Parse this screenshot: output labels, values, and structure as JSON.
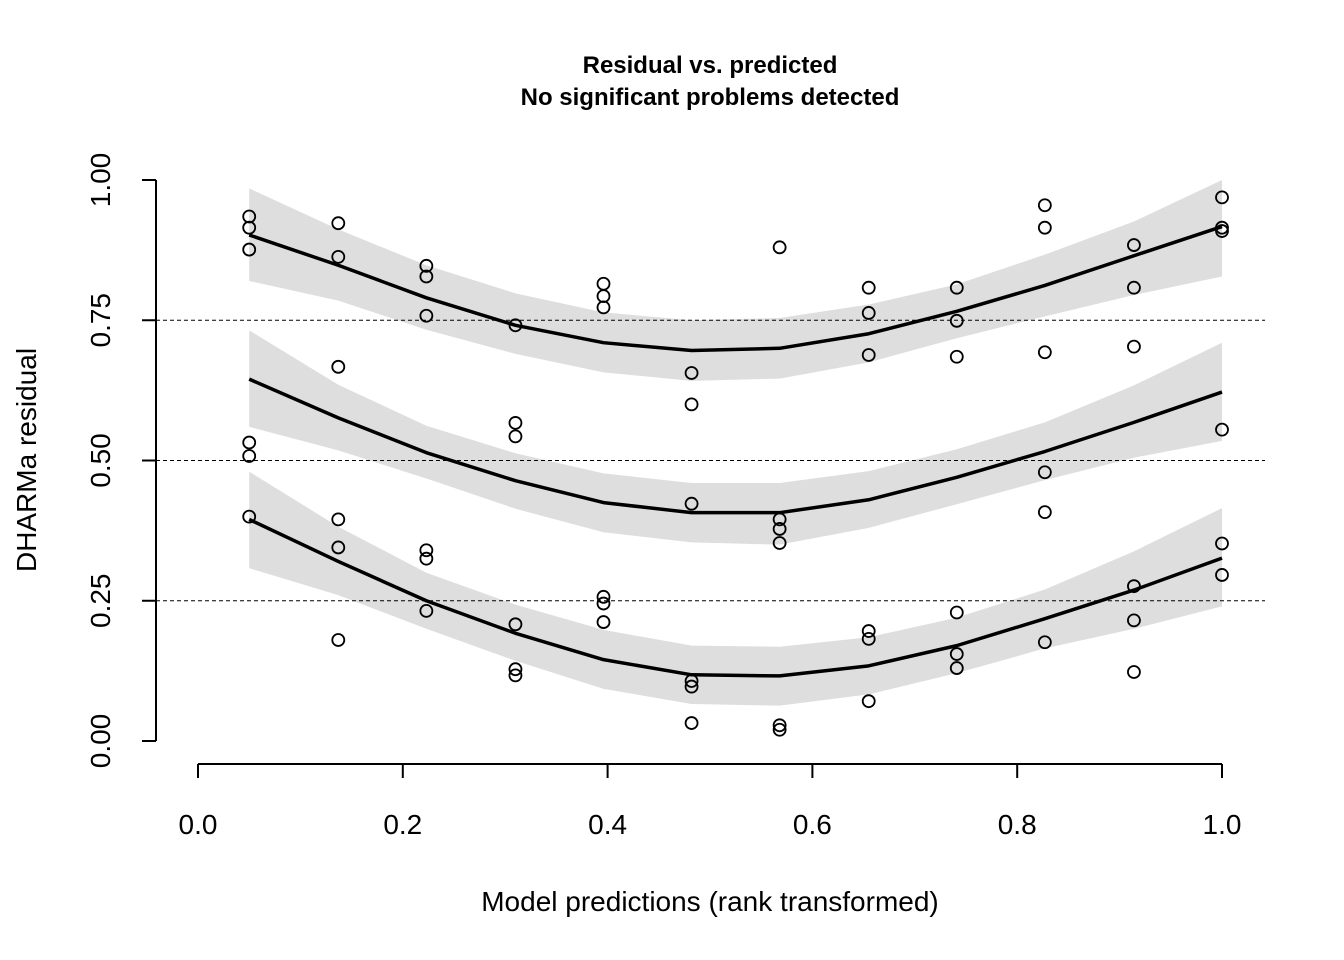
{
  "chart_data": {
    "type": "scatter",
    "title": "Residual vs. predicted",
    "subtitle": "No significant problems detected",
    "xlabel": "Model predictions (rank transformed)",
    "ylabel": "DHARMa residual",
    "xlim": [
      0.0,
      1.0
    ],
    "ylim": [
      0.0,
      1.0
    ],
    "x_ticks": [
      "0.0",
      "0.2",
      "0.4",
      "0.6",
      "0.8",
      "1.0"
    ],
    "y_ticks": [
      "0.00",
      "0.25",
      "0.50",
      "0.75",
      "1.00"
    ],
    "reference_lines": [
      0.25,
      0.5,
      0.75
    ],
    "grid": false,
    "points": [
      [
        0.05,
        0.935
      ],
      [
        0.05,
        0.915
      ],
      [
        0.05,
        0.876
      ],
      [
        0.05,
        0.532
      ],
      [
        0.05,
        0.508
      ],
      [
        0.05,
        0.4
      ],
      [
        0.137,
        0.923
      ],
      [
        0.137,
        0.863
      ],
      [
        0.137,
        0.667
      ],
      [
        0.137,
        0.395
      ],
      [
        0.137,
        0.345
      ],
      [
        0.137,
        0.18
      ],
      [
        0.223,
        0.847
      ],
      [
        0.223,
        0.828
      ],
      [
        0.223,
        0.758
      ],
      [
        0.223,
        0.34
      ],
      [
        0.223,
        0.325
      ],
      [
        0.223,
        0.232
      ],
      [
        0.31,
        0.741
      ],
      [
        0.31,
        0.567
      ],
      [
        0.31,
        0.543
      ],
      [
        0.31,
        0.208
      ],
      [
        0.31,
        0.128
      ],
      [
        0.31,
        0.117
      ],
      [
        0.396,
        0.815
      ],
      [
        0.396,
        0.793
      ],
      [
        0.396,
        0.773
      ],
      [
        0.396,
        0.257
      ],
      [
        0.396,
        0.245
      ],
      [
        0.396,
        0.212
      ],
      [
        0.482,
        0.656
      ],
      [
        0.482,
        0.6
      ],
      [
        0.482,
        0.423
      ],
      [
        0.482,
        0.107
      ],
      [
        0.482,
        0.097
      ],
      [
        0.482,
        0.032
      ],
      [
        0.568,
        0.88
      ],
      [
        0.568,
        0.395
      ],
      [
        0.568,
        0.378
      ],
      [
        0.568,
        0.353
      ],
      [
        0.568,
        0.028
      ],
      [
        0.568,
        0.02
      ],
      [
        0.655,
        0.808
      ],
      [
        0.655,
        0.763
      ],
      [
        0.655,
        0.688
      ],
      [
        0.655,
        0.196
      ],
      [
        0.655,
        0.182
      ],
      [
        0.655,
        0.071
      ],
      [
        0.741,
        0.808
      ],
      [
        0.741,
        0.749
      ],
      [
        0.741,
        0.685
      ],
      [
        0.741,
        0.229
      ],
      [
        0.741,
        0.155
      ],
      [
        0.741,
        0.13
      ],
      [
        0.827,
        0.955
      ],
      [
        0.827,
        0.915
      ],
      [
        0.827,
        0.693
      ],
      [
        0.827,
        0.479
      ],
      [
        0.827,
        0.408
      ],
      [
        0.827,
        0.176
      ],
      [
        0.914,
        0.884
      ],
      [
        0.914,
        0.808
      ],
      [
        0.914,
        0.703
      ],
      [
        0.914,
        0.276
      ],
      [
        0.914,
        0.215
      ],
      [
        0.914,
        0.123
      ],
      [
        1.0,
        0.969
      ],
      [
        1.0,
        0.915
      ],
      [
        1.0,
        0.909
      ],
      [
        1.0,
        0.555
      ],
      [
        1.0,
        0.352
      ],
      [
        1.0,
        0.296
      ]
    ],
    "quantile_curves": [
      {
        "quantile": 0.75,
        "x": [
          0.05,
          0.137,
          0.223,
          0.31,
          0.396,
          0.482,
          0.568,
          0.655,
          0.741,
          0.827,
          0.914,
          1.0
        ],
        "fit": [
          0.902,
          0.848,
          0.79,
          0.741,
          0.71,
          0.696,
          0.7,
          0.726,
          0.766,
          0.812,
          0.865,
          0.917
        ],
        "lower": [
          0.82,
          0.785,
          0.733,
          0.69,
          0.657,
          0.642,
          0.646,
          0.675,
          0.718,
          0.757,
          0.795,
          0.828
        ],
        "upper": [
          0.985,
          0.912,
          0.848,
          0.798,
          0.764,
          0.75,
          0.754,
          0.778,
          0.814,
          0.867,
          0.926,
          1.0
        ]
      },
      {
        "quantile": 0.5,
        "x": [
          0.05,
          0.137,
          0.223,
          0.31,
          0.396,
          0.482,
          0.568,
          0.655,
          0.741,
          0.827,
          0.914,
          1.0
        ],
        "fit": [
          0.645,
          0.576,
          0.514,
          0.464,
          0.425,
          0.407,
          0.407,
          0.43,
          0.47,
          0.516,
          0.568,
          0.622
        ],
        "lower": [
          0.56,
          0.518,
          0.468,
          0.414,
          0.372,
          0.354,
          0.35,
          0.38,
          0.422,
          0.465,
          0.505,
          0.535
        ],
        "upper": [
          0.732,
          0.635,
          0.562,
          0.513,
          0.477,
          0.46,
          0.46,
          0.481,
          0.52,
          0.568,
          0.634,
          0.71
        ]
      },
      {
        "quantile": 0.25,
        "x": [
          0.05,
          0.137,
          0.223,
          0.31,
          0.396,
          0.482,
          0.568,
          0.655,
          0.741,
          0.827,
          0.914,
          1.0
        ],
        "fit": [
          0.395,
          0.32,
          0.25,
          0.192,
          0.145,
          0.118,
          0.116,
          0.134,
          0.17,
          0.218,
          0.269,
          0.326
        ],
        "lower": [
          0.308,
          0.26,
          0.2,
          0.143,
          0.093,
          0.066,
          0.063,
          0.083,
          0.121,
          0.165,
          0.2,
          0.24
        ],
        "upper": [
          0.48,
          0.382,
          0.3,
          0.243,
          0.198,
          0.17,
          0.168,
          0.185,
          0.22,
          0.27,
          0.338,
          0.415
        ]
      }
    ]
  }
}
